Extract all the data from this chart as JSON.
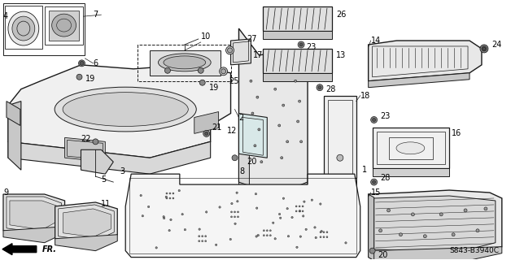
{
  "background_color": "#ffffff",
  "diagram_code": "S843-B3940C",
  "line_color": "#1a1a1a",
  "text_color": "#000000",
  "label_fontsize": 7.0,
  "diagram_fontsize": 6.5,
  "parts": {
    "tray_main": {
      "color": "#cccccc",
      "lw": 0.9
    },
    "panels": {
      "color": "#aaaaaa",
      "lw": 0.8
    }
  }
}
